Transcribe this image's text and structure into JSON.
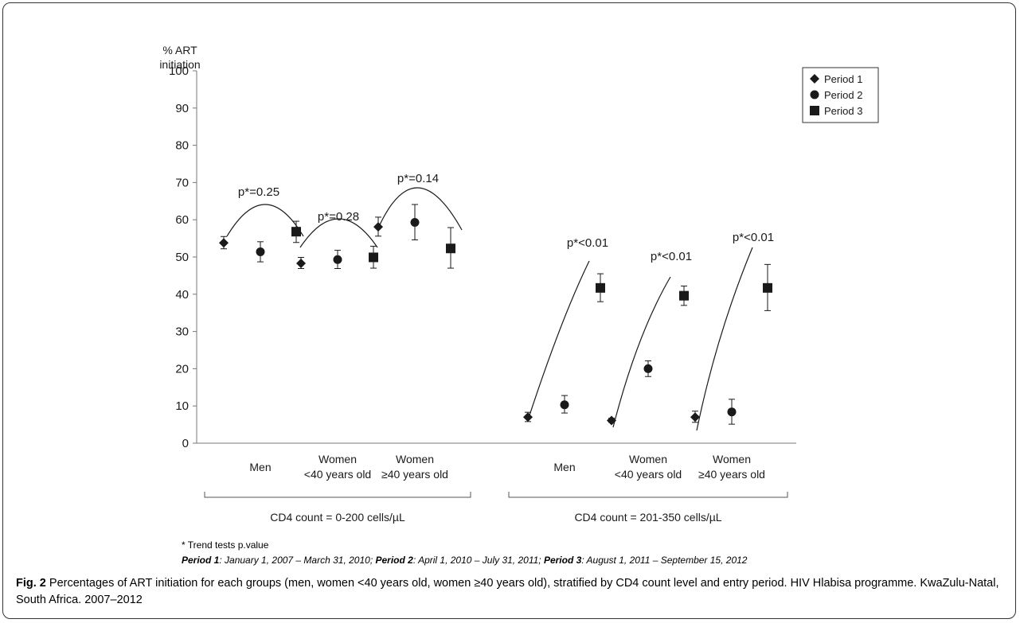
{
  "chart_data": {
    "type": "scatter",
    "y_axis_label_lines": [
      "% ART",
      "initiation"
    ],
    "ylim": [
      0,
      100
    ],
    "y_ticks": [
      0,
      10,
      20,
      30,
      40,
      50,
      60,
      70,
      80,
      90,
      100
    ],
    "grid": false,
    "legend_placement": "top-right",
    "marker_colors": {
      "primary": "#1a1a1a"
    },
    "categories": [
      {
        "label_lines": [
          "Men"
        ]
      },
      {
        "label_lines": [
          "Women",
          "<40 years old"
        ]
      },
      {
        "label_lines": [
          "Women",
          "≥40 years old"
        ]
      },
      {
        "label_lines": [
          "Men"
        ]
      },
      {
        "label_lines": [
          "Women",
          "<40 years old"
        ]
      },
      {
        "label_lines": [
          "Women",
          "≥40 years old"
        ]
      }
    ],
    "groups": [
      {
        "label": "CD4 count = 0-200 cells/µL",
        "category_indices": [
          0,
          1,
          2
        ]
      },
      {
        "label": "CD4 count = 201-350 cells/µL",
        "category_indices": [
          3,
          4,
          5
        ]
      }
    ],
    "series": [
      {
        "name": "Period 1",
        "marker": "diamond",
        "values": [
          53.8,
          48.3,
          58.1,
          7.0,
          6.1,
          7.0
        ],
        "err_low": [
          52.2,
          46.9,
          55.6,
          5.8,
          5.6,
          5.6
        ],
        "err_high": [
          55.5,
          49.9,
          60.7,
          8.3,
          6.7,
          8.6
        ]
      },
      {
        "name": "Period 2",
        "marker": "circle",
        "values": [
          51.4,
          49.3,
          59.3,
          10.3,
          20.0,
          8.4
        ],
        "err_low": [
          48.7,
          46.9,
          54.6,
          8.1,
          17.9,
          5.1
        ],
        "err_high": [
          54.1,
          51.8,
          64.1,
          12.8,
          22.1,
          11.8
        ]
      },
      {
        "name": "Period 3",
        "marker": "square",
        "values": [
          56.8,
          49.9,
          52.3,
          41.7,
          39.6,
          41.7
        ],
        "err_low": [
          53.9,
          47.0,
          47.0,
          38.0,
          37.0,
          35.6
        ],
        "err_high": [
          59.6,
          52.9,
          57.9,
          45.5,
          42.2,
          48.0
        ]
      }
    ],
    "annotations": [
      "p*=0.25",
      "p*=0.28",
      "p*=0.14",
      "p*<0.01",
      "p*<0.01",
      "p*<0.01"
    ]
  },
  "footnotes": {
    "trend_note": "* Trend tests p.value",
    "periods": [
      {
        "name": "Period 1",
        "range": ": January 1, 2007 – March 31, 2010; "
      },
      {
        "name": "Period 2",
        "range": ": April 1, 2010 – July 31, 2011; "
      },
      {
        "name": "Period 3",
        "range": ": August 1, 2011 – September 15, 2012"
      }
    ]
  },
  "caption": {
    "label": "Fig. 2",
    "text": " Percentages of ART initiation for each groups (men, women <40 years old, women ≥40 years old), stratified by CD4 count level and entry period. HIV Hlabisa programme. KwaZulu-Natal, South Africa. 2007–2012"
  }
}
